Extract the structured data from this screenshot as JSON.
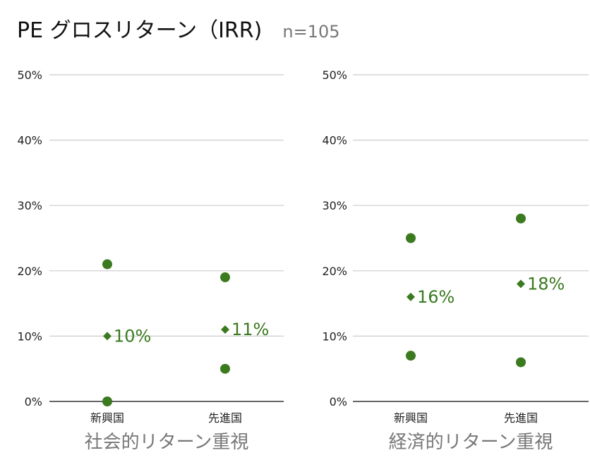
{
  "title": "PE グロスリターン（IRR)",
  "subtitle": "n=105",
  "colors": {
    "marker": "#3b7a1e",
    "grid": "#cccccc",
    "axis": "#333333"
  },
  "chart_data": [
    {
      "type": "scatter",
      "xlabel": "社会的リターン重視",
      "categories": [
        "新興国",
        "先進国"
      ],
      "ylim": [
        0,
        50
      ],
      "yticks": [
        "0%",
        "10%",
        "20%",
        "30%",
        "40%",
        "50%"
      ],
      "points": [
        [
          21,
          0
        ],
        [
          19,
          5
        ]
      ],
      "medians": [
        10,
        11
      ],
      "median_labels": [
        "10%",
        "11%"
      ]
    },
    {
      "type": "scatter",
      "xlabel": "経済的リターン重視",
      "categories": [
        "新興国",
        "先進国"
      ],
      "ylim": [
        0,
        50
      ],
      "yticks": [
        "0%",
        "10%",
        "20%",
        "30%",
        "40%",
        "50%"
      ],
      "points": [
        [
          25,
          7
        ],
        [
          28,
          6
        ]
      ],
      "medians": [
        16,
        18
      ],
      "median_labels": [
        "16%",
        "18%"
      ]
    }
  ]
}
